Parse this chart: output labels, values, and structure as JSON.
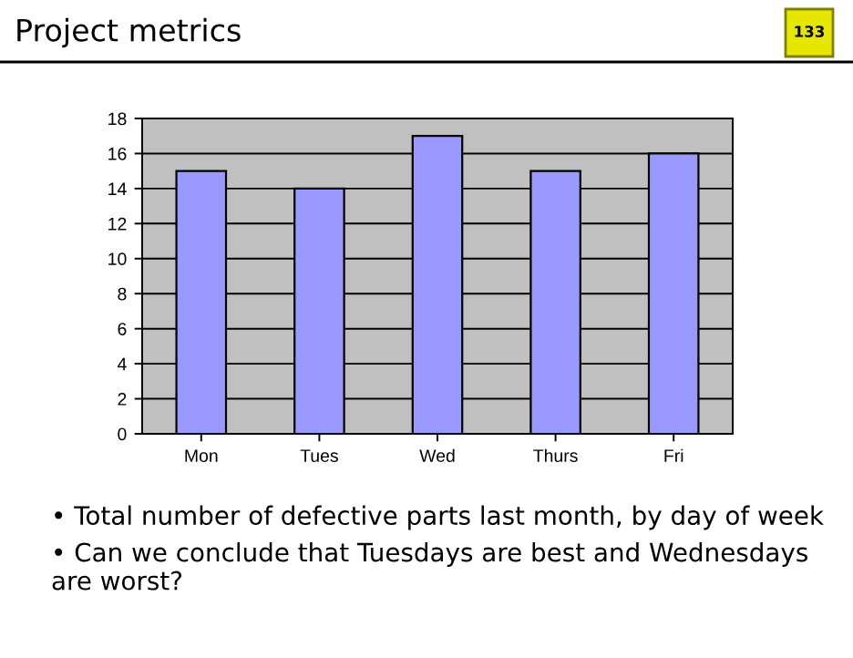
{
  "chart_data": {
    "type": "bar",
    "title": "Project metrics",
    "categories": [
      "Mon",
      "Tues",
      "Wed",
      "Thurs",
      "Fri"
    ],
    "values": [
      15,
      14,
      17,
      15,
      16
    ],
    "color": "#9999ff",
    "ylim": [
      0,
      18
    ],
    "yticks": [
      0,
      2,
      4,
      6,
      8,
      10,
      12,
      14,
      16,
      18
    ],
    "grid": "y",
    "annotations": [
      "133",
      "• Total number of defective parts last month, by day of week",
      "• Can we conclude that Tuesdays are best and Wednesdays are worst?"
    ]
  }
}
